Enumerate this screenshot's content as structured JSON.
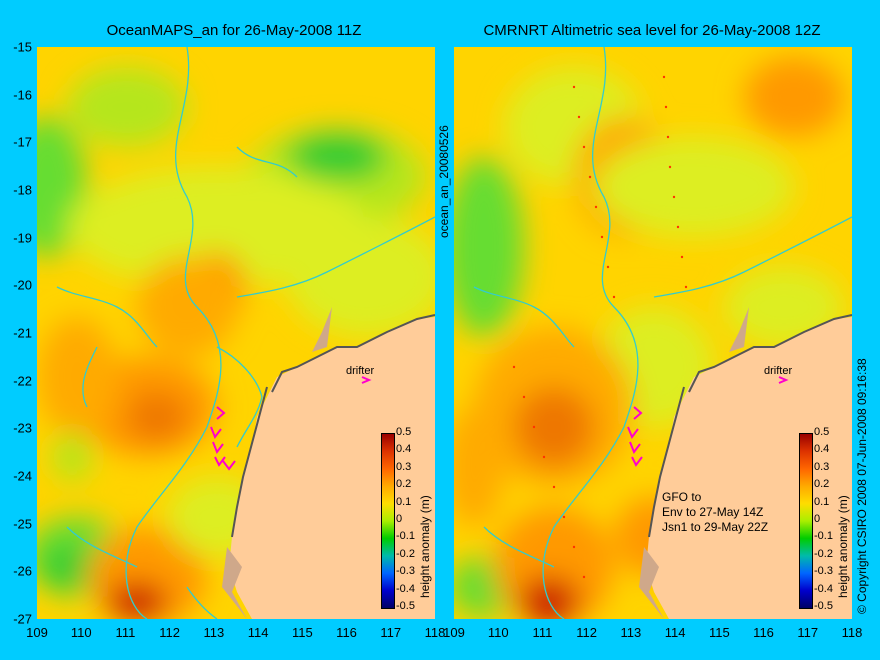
{
  "left_panel": {
    "title": "OceanMAPS_an for 26-May-2008 11Z",
    "drifter_label": "drifter",
    "colorbar_label": "height anomaly (m)",
    "colorbar_ticks": [
      "0.5",
      "0.4",
      "0.3",
      "0.2",
      "0.1",
      "0",
      "-0.1",
      "-0.2",
      "-0.3",
      "-0.4",
      "-0.5"
    ]
  },
  "right_panel": {
    "title": "CMRNRT Altimetric sea level  for 26-May-2008 12Z",
    "drifter_label": "drifter",
    "colorbar_label": "height anomaly (m)",
    "colorbar_ticks": [
      "0.5",
      "0.4",
      "0.3",
      "0.2",
      "0.1",
      "0",
      "-0.1",
      "-0.2",
      "-0.3",
      "-0.4",
      "-0.5"
    ],
    "note_lines": [
      "GFO to",
      "Env to 27-May 14Z",
      "Jsn1 to 29-May 22Z"
    ]
  },
  "side_label": "ocean_an_20080526",
  "copyright": "© Copyright CSIRO 2008   07-Jun-2008 09:16:38",
  "y_ticks": [
    "-15",
    "-16",
    "-17",
    "-18",
    "-19",
    "-20",
    "-21",
    "-22",
    "-23",
    "-24",
    "-25",
    "-26",
    "-27"
  ],
  "x_ticks": [
    "109",
    "110",
    "111",
    "112",
    "113",
    "114",
    "115",
    "116",
    "117",
    "118"
  ],
  "colors": {
    "background": "#00ccff",
    "land": "#ffcc99",
    "coast": "#cfa88a",
    "contour": "#33cccc",
    "drifter": "#ff00cc"
  }
}
